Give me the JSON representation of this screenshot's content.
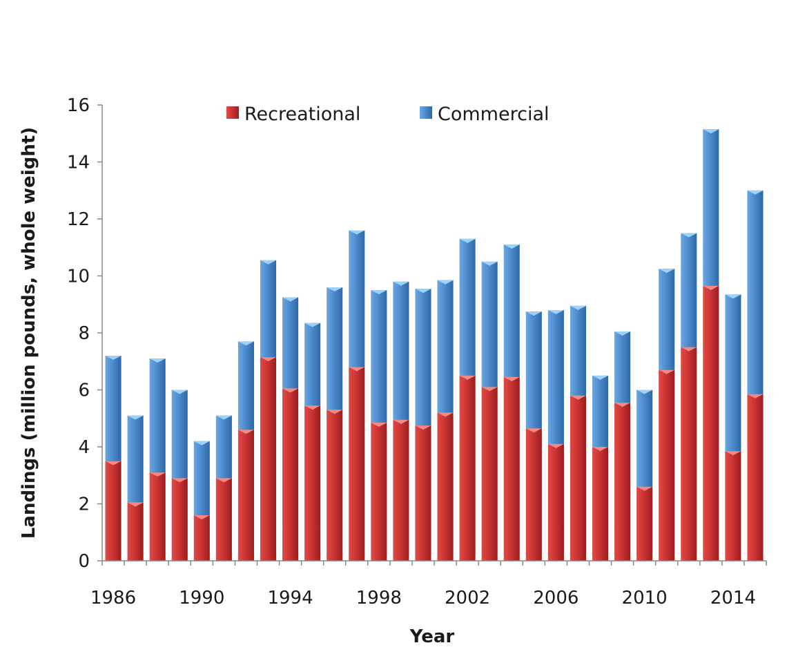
{
  "chart_data": {
    "type": "bar",
    "stacked": true,
    "title": "",
    "xlabel": "Year",
    "ylabel": "Landings (million pounds, whole weight)",
    "ylim": [
      0,
      16
    ],
    "yticks": [
      0,
      2,
      4,
      6,
      8,
      10,
      12,
      14,
      16
    ],
    "xtick_labels": [
      "1986",
      "1990",
      "1994",
      "1998",
      "2002",
      "2006",
      "2010",
      "2014"
    ],
    "grid": false,
    "legend_position": "top",
    "categories": [
      "1986",
      "1987",
      "1988",
      "1989",
      "1990",
      "1991",
      "1992",
      "1993",
      "1994",
      "1995",
      "1996",
      "1997",
      "1998",
      "1999",
      "2000",
      "2001",
      "2002",
      "2003",
      "2004",
      "2005",
      "2006",
      "2007",
      "2008",
      "2009",
      "2010",
      "2011",
      "2012",
      "2013",
      "2014",
      "2015"
    ],
    "series": [
      {
        "name": "Recreational",
        "color": "#c83232",
        "values": [
          3.5,
          2.05,
          3.1,
          2.9,
          1.6,
          2.9,
          4.6,
          7.15,
          6.05,
          5.45,
          5.3,
          6.8,
          4.85,
          4.95,
          4.75,
          5.2,
          6.5,
          6.1,
          6.45,
          4.65,
          4.1,
          5.8,
          4.0,
          5.55,
          2.6,
          6.7,
          7.5,
          9.65,
          3.85,
          5.85
        ]
      },
      {
        "name": "Commercial",
        "color": "#4a88cc",
        "values": [
          3.7,
          3.05,
          4.0,
          3.1,
          2.6,
          2.2,
          3.1,
          3.4,
          3.2,
          2.9,
          4.3,
          4.8,
          4.65,
          4.85,
          4.8,
          4.65,
          4.8,
          4.4,
          4.65,
          4.1,
          4.7,
          3.15,
          2.5,
          2.5,
          3.4,
          3.55,
          4.0,
          5.5,
          5.5,
          7.15
        ]
      }
    ]
  }
}
